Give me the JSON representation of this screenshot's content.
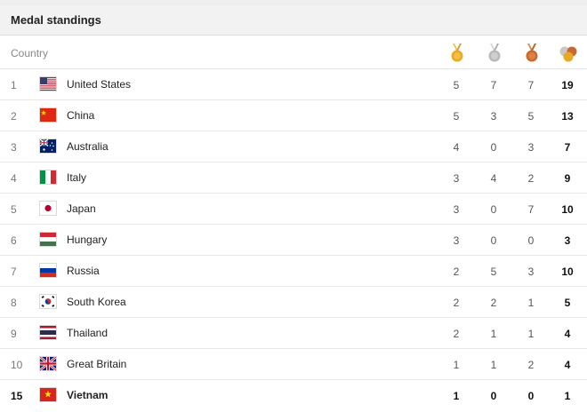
{
  "header": {
    "title": "Medal standings"
  },
  "columns": {
    "country": "Country",
    "gold_icon": "gold-medal-icon",
    "silver_icon": "silver-medal-icon",
    "bronze_icon": "bronze-medal-icon",
    "total_icon": "total-medals-icon"
  },
  "colors": {
    "gold": "#e9a825",
    "silver": "#b9b9b9",
    "bronze": "#c8692e"
  },
  "rows": [
    {
      "rank": "1",
      "country": "United States",
      "flag": "flag-usa-icon",
      "gold": "5",
      "silver": "7",
      "bronze": "7",
      "total": "19"
    },
    {
      "rank": "2",
      "country": "China",
      "flag": "flag-china-icon",
      "gold": "5",
      "silver": "3",
      "bronze": "5",
      "total": "13"
    },
    {
      "rank": "3",
      "country": "Australia",
      "flag": "flag-australia-icon",
      "gold": "4",
      "silver": "0",
      "bronze": "3",
      "total": "7"
    },
    {
      "rank": "4",
      "country": "Italy",
      "flag": "flag-italy-icon",
      "gold": "3",
      "silver": "4",
      "bronze": "2",
      "total": "9"
    },
    {
      "rank": "5",
      "country": "Japan",
      "flag": "flag-japan-icon",
      "gold": "3",
      "silver": "0",
      "bronze": "7",
      "total": "10"
    },
    {
      "rank": "6",
      "country": "Hungary",
      "flag": "flag-hungary-icon",
      "gold": "3",
      "silver": "0",
      "bronze": "0",
      "total": "3"
    },
    {
      "rank": "7",
      "country": "Russia",
      "flag": "flag-russia-icon",
      "gold": "2",
      "silver": "5",
      "bronze": "3",
      "total": "10"
    },
    {
      "rank": "8",
      "country": "South Korea",
      "flag": "flag-south-korea-icon",
      "gold": "2",
      "silver": "2",
      "bronze": "1",
      "total": "5"
    },
    {
      "rank": "9",
      "country": "Thailand",
      "flag": "flag-thailand-icon",
      "gold": "2",
      "silver": "1",
      "bronze": "1",
      "total": "4"
    },
    {
      "rank": "10",
      "country": "Great Britain",
      "flag": "flag-great-britain-icon",
      "gold": "1",
      "silver": "1",
      "bronze": "2",
      "total": "4"
    },
    {
      "rank": "15",
      "country": "Vietnam",
      "flag": "flag-vietnam-icon",
      "gold": "1",
      "silver": "0",
      "bronze": "0",
      "total": "1"
    }
  ]
}
